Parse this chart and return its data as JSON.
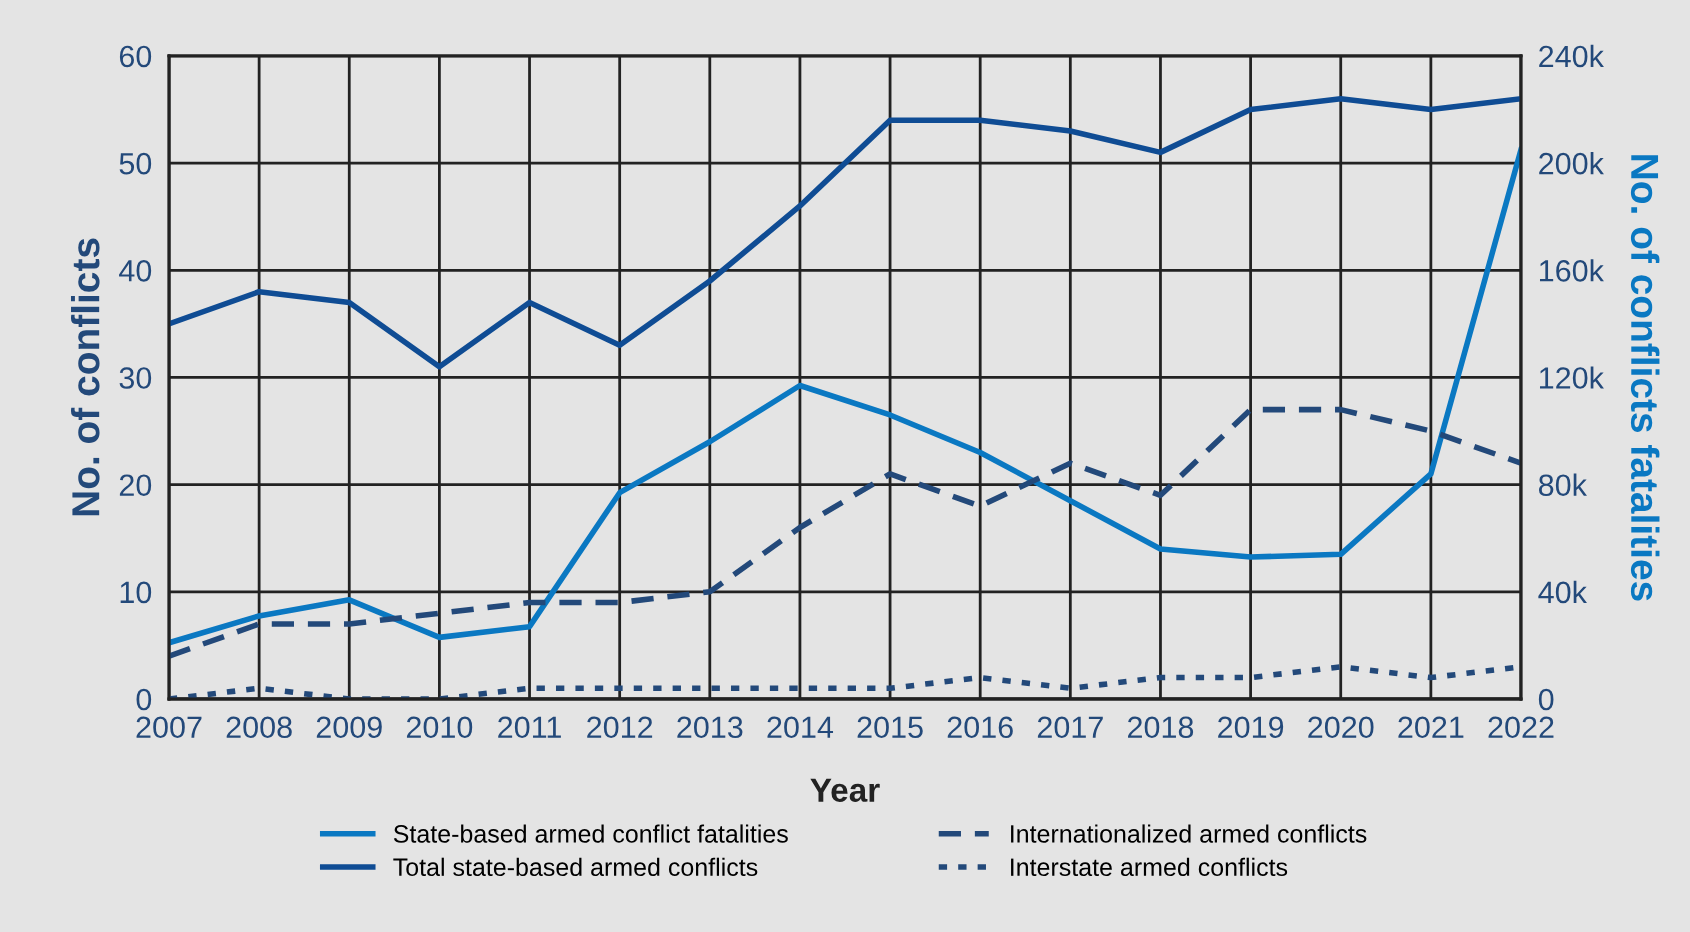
{
  "chart_data": {
    "type": "line",
    "xlabel": "Year",
    "ylabel": "No. of conflicts",
    "y2label": "No. of conflicts fatalities",
    "x": [
      2007,
      2008,
      2009,
      2010,
      2011,
      2012,
      2013,
      2014,
      2015,
      2016,
      2017,
      2018,
      2019,
      2020,
      2021,
      2022
    ],
    "xlim": [
      2007,
      2022
    ],
    "xticks": [
      2007,
      2008,
      2009,
      2010,
      2011,
      2012,
      2013,
      2014,
      2015,
      2016,
      2017,
      2018,
      2019,
      2020,
      2021,
      2022
    ],
    "ylim": [
      0,
      60
    ],
    "yticks": [
      0,
      10,
      20,
      30,
      40,
      50,
      60
    ],
    "y2lim": [
      0,
      240000
    ],
    "y2ticks": [
      {
        "value": 0,
        "label": "0"
      },
      {
        "value": 40000,
        "label": "40k"
      },
      {
        "value": 80000,
        "label": "80k"
      },
      {
        "value": 120000,
        "label": "120k"
      },
      {
        "value": 160000,
        "label": "160k"
      },
      {
        "value": 200000,
        "label": "200k"
      },
      {
        "value": 240000,
        "label": "240k"
      }
    ],
    "grid": true,
    "legend": "bottom",
    "marker": "none",
    "series": [
      {
        "name": "State-based armed conflict fatalities",
        "color": "#0a78c2",
        "axis": "y2",
        "line_style": "solid",
        "values": [
          21000,
          31000,
          37000,
          23000,
          27000,
          77000,
          96000,
          117000,
          106000,
          92000,
          74000,
          56000,
          53000,
          54000,
          84000,
          205000
        ]
      },
      {
        "name": "Internationalized armed conflicts",
        "color": "#23497a",
        "line_style": "dashed",
        "values": [
          4,
          7,
          7,
          8,
          9,
          9,
          10,
          16,
          21,
          18,
          22,
          19,
          27,
          27,
          25,
          22
        ]
      },
      {
        "name": "Total state-based armed conflicts",
        "color": "#0f4c94",
        "line_style": "solid",
        "values": [
          35,
          38,
          37,
          31,
          37,
          33,
          39,
          46,
          54,
          54,
          53,
          51,
          55,
          56,
          55,
          56
        ]
      },
      {
        "name": "Interstate armed conflicts",
        "color": "#23497a",
        "line_style": "dotted",
        "values": [
          0,
          1,
          0,
          0,
          1,
          1,
          1,
          1,
          1,
          2,
          1,
          2,
          2,
          3,
          2,
          3
        ]
      }
    ]
  }
}
